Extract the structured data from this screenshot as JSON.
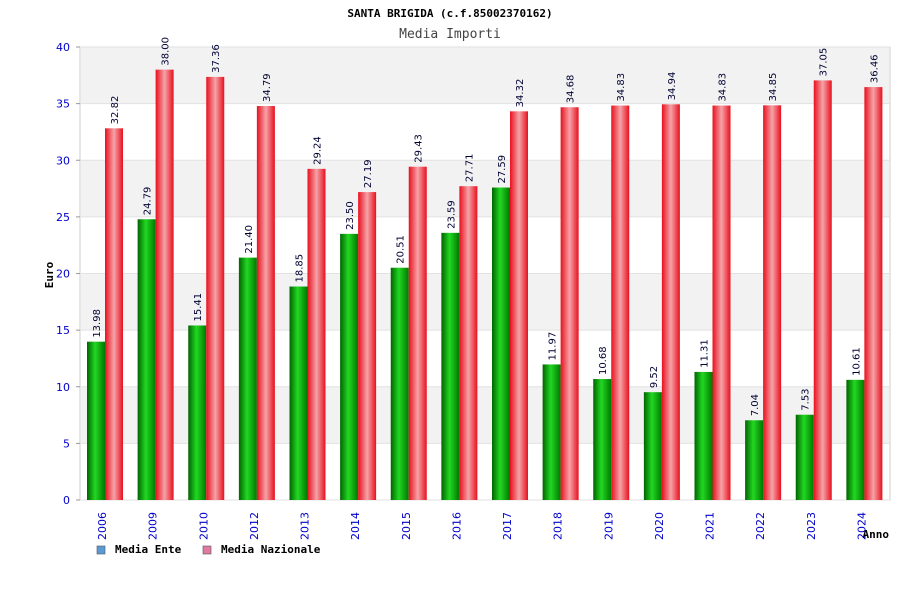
{
  "chart_data": {
    "type": "bar",
    "title": "SANTA BRIGIDA (c.f.85002370162)",
    "subtitle": "Media Importi",
    "xlabel": "Anno",
    "ylabel": "Euro",
    "ylim": [
      0,
      40
    ],
    "yticks": [
      0,
      5,
      10,
      15,
      20,
      25,
      30,
      35,
      40
    ],
    "grid": true,
    "legend_position": "bottom-left",
    "categories": [
      "2006",
      "2009",
      "2010",
      "2012",
      "2013",
      "2014",
      "2015",
      "2016",
      "2017",
      "2018",
      "2019",
      "2020",
      "2021",
      "2022",
      "2023",
      "2024"
    ],
    "series": [
      {
        "name": "Media Ente",
        "color": "#00b400",
        "legend_color": "#5b9bd5",
        "values": [
          13.98,
          24.79,
          15.41,
          21.4,
          18.85,
          23.5,
          20.51,
          23.59,
          27.59,
          11.97,
          10.68,
          9.52,
          11.31,
          7.04,
          7.53,
          10.61
        ],
        "labels": [
          "13.98",
          "24.79",
          "15.41",
          "21.40",
          "18.85",
          "23.50",
          "20.51",
          "23.59",
          "27.59",
          "11.97",
          "10.68",
          "9.52",
          "11.31",
          "7.04",
          "7.53",
          "10.61"
        ]
      },
      {
        "name": "Media Nazionale",
        "color": "#e8101e",
        "legend_color": "#e07aa0",
        "values": [
          32.82,
          38.0,
          37.36,
          34.79,
          29.24,
          27.19,
          29.43,
          27.71,
          34.32,
          34.68,
          34.83,
          34.94,
          34.83,
          34.85,
          37.05,
          36.46
        ],
        "labels": [
          "32.82",
          "38.00",
          "37.36",
          "34.79",
          "29.24",
          "27.19",
          "29.43",
          "27.71",
          "34.32",
          "34.68",
          "34.83",
          "34.94",
          "34.83",
          "34.85",
          "37.05",
          "36.46"
        ]
      }
    ]
  }
}
